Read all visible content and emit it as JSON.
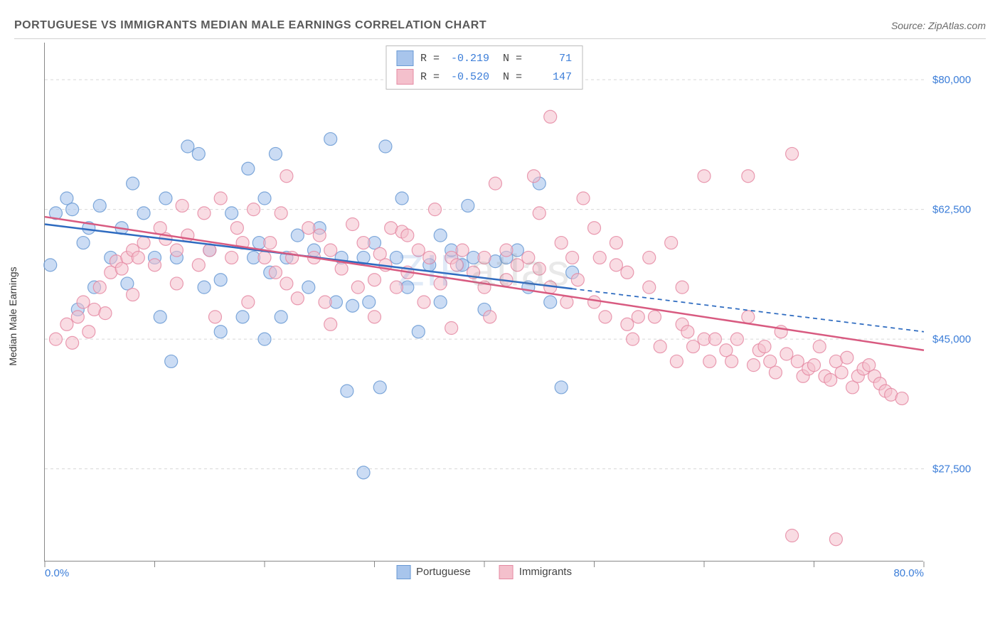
{
  "header": {
    "title": "PORTUGUESE VS IMMIGRANTS MEDIAN MALE EARNINGS CORRELATION CHART",
    "source": "Source: ZipAtlas.com"
  },
  "chart": {
    "type": "scatter",
    "ylabel": "Median Male Earnings",
    "xlim": [
      0,
      80
    ],
    "ylim": [
      15000,
      85000
    ],
    "x_axis": {
      "min_label": "0.0%",
      "max_label": "80.0%",
      "tick_positions_pct": [
        0,
        12.5,
        25,
        37.5,
        50,
        62.5,
        75,
        87.5,
        100
      ]
    },
    "y_axis": {
      "gridlines": [
        {
          "value": 27500,
          "label": "$27,500"
        },
        {
          "value": 45000,
          "label": "$45,000"
        },
        {
          "value": 62500,
          "label": "$62,500"
        },
        {
          "value": 80000,
          "label": "$80,000"
        }
      ],
      "grid_color": "#d8d8d8",
      "grid_dash": "4,4",
      "label_color": "#3b7dd8",
      "label_fontsize": 15
    },
    "background_color": "#ffffff",
    "watermark": {
      "text_a": "ZIP",
      "text_b": "atlas"
    },
    "series": [
      {
        "name": "Portuguese",
        "color_fill": "#a8c5ec",
        "color_stroke": "#6a9ad4",
        "marker_radius": 9,
        "marker_opacity": 0.6,
        "trend": {
          "x1": 0,
          "y1": 60500,
          "x2": 48,
          "y2": 51800,
          "x2_dashed": 80,
          "y2_dashed": 46000,
          "line_color": "#2e6bc0",
          "line_width": 2.5
        },
        "r": "-0.219",
        "n": "71",
        "points": [
          [
            1,
            62000
          ],
          [
            0.5,
            55000
          ],
          [
            2,
            64000
          ],
          [
            2.5,
            62500
          ],
          [
            3,
            49000
          ],
          [
            3.5,
            58000
          ],
          [
            4,
            60000
          ],
          [
            4.5,
            52000
          ],
          [
            5,
            63000
          ],
          [
            6,
            56000
          ],
          [
            7,
            60000
          ],
          [
            7.5,
            52500
          ],
          [
            8,
            66000
          ],
          [
            9,
            62000
          ],
          [
            10,
            56000
          ],
          [
            10.5,
            48000
          ],
          [
            11,
            64000
          ],
          [
            11.5,
            42000
          ],
          [
            12,
            56000
          ],
          [
            13,
            71000
          ],
          [
            14,
            70000
          ],
          [
            14.5,
            52000
          ],
          [
            15,
            57000
          ],
          [
            16,
            53000
          ],
          [
            16,
            46000
          ],
          [
            17,
            62000
          ],
          [
            18,
            48000
          ],
          [
            18.5,
            68000
          ],
          [
            19,
            56000
          ],
          [
            19.5,
            58000
          ],
          [
            20,
            64000
          ],
          [
            20.5,
            54000
          ],
          [
            21,
            70000
          ],
          [
            21.5,
            48000
          ],
          [
            22,
            56000
          ],
          [
            23,
            59000
          ],
          [
            24,
            52000
          ],
          [
            24.5,
            57000
          ],
          [
            26,
            72000
          ],
          [
            26.5,
            50000
          ],
          [
            27,
            56000
          ],
          [
            27.5,
            38000
          ],
          [
            28,
            49500
          ],
          [
            29,
            56000
          ],
          [
            29.5,
            50000
          ],
          [
            29,
            27000
          ],
          [
            30,
            58000
          ],
          [
            30.5,
            38500
          ],
          [
            31,
            71000
          ],
          [
            32,
            56000
          ],
          [
            32.5,
            64000
          ],
          [
            34,
            46000
          ],
          [
            35,
            55000
          ],
          [
            36,
            50000
          ],
          [
            37,
            57000
          ],
          [
            38,
            55000
          ],
          [
            38.5,
            63000
          ],
          [
            39,
            56000
          ],
          [
            40,
            49000
          ],
          [
            41,
            55500
          ],
          [
            42,
            56000
          ],
          [
            43,
            57000
          ],
          [
            44,
            52000
          ],
          [
            45,
            66000
          ],
          [
            46,
            50000
          ],
          [
            47,
            38500
          ],
          [
            48,
            54000
          ],
          [
            20,
            45000
          ],
          [
            25,
            60000
          ],
          [
            33,
            52000
          ],
          [
            36,
            59000
          ]
        ]
      },
      {
        "name": "Immigrants",
        "color_fill": "#f4c0cc",
        "color_stroke": "#e58aa3",
        "marker_radius": 9,
        "marker_opacity": 0.55,
        "trend": {
          "x1": 0,
          "y1": 61500,
          "x2": 80,
          "y2": 43500,
          "line_color": "#d85a80",
          "line_width": 2.5
        },
        "r": "-0.520",
        "n": "147",
        "points": [
          [
            1,
            45000
          ],
          [
            2,
            47000
          ],
          [
            2.5,
            44500
          ],
          [
            3,
            48000
          ],
          [
            3.5,
            50000
          ],
          [
            4,
            46000
          ],
          [
            4.5,
            49000
          ],
          [
            5,
            52000
          ],
          [
            5.5,
            48500
          ],
          [
            6,
            54000
          ],
          [
            6.5,
            55500
          ],
          [
            7,
            54500
          ],
          [
            7.5,
            56000
          ],
          [
            8,
            57000
          ],
          [
            8.5,
            56000
          ],
          [
            9,
            58000
          ],
          [
            10,
            55000
          ],
          [
            11,
            58500
          ],
          [
            12,
            57000
          ],
          [
            12.5,
            63000
          ],
          [
            13,
            59000
          ],
          [
            14,
            55000
          ],
          [
            14.5,
            62000
          ],
          [
            15,
            57000
          ],
          [
            15.5,
            48000
          ],
          [
            16,
            64000
          ],
          [
            17,
            56000
          ],
          [
            17.5,
            60000
          ],
          [
            18,
            58000
          ],
          [
            18.5,
            50000
          ],
          [
            19,
            62500
          ],
          [
            20,
            56000
          ],
          [
            20.5,
            58000
          ],
          [
            21,
            54000
          ],
          [
            21.5,
            62000
          ],
          [
            22,
            67000
          ],
          [
            22.5,
            56000
          ],
          [
            23,
            50500
          ],
          [
            24,
            60000
          ],
          [
            24.5,
            56000
          ],
          [
            25,
            59000
          ],
          [
            25.5,
            50000
          ],
          [
            26,
            57000
          ],
          [
            27,
            54500
          ],
          [
            28,
            60500
          ],
          [
            28.5,
            52000
          ],
          [
            29,
            58000
          ],
          [
            30,
            48000
          ],
          [
            30.5,
            56500
          ],
          [
            31,
            55000
          ],
          [
            31.5,
            60000
          ],
          [
            32,
            52000
          ],
          [
            32.5,
            59500
          ],
          [
            33,
            54000
          ],
          [
            33,
            59000
          ],
          [
            34,
            57000
          ],
          [
            34.5,
            50000
          ],
          [
            35,
            56000
          ],
          [
            35.5,
            62500
          ],
          [
            36,
            52500
          ],
          [
            37,
            56000
          ],
          [
            37.5,
            55000
          ],
          [
            38,
            57000
          ],
          [
            39,
            54000
          ],
          [
            40,
            56000
          ],
          [
            40.5,
            48000
          ],
          [
            41,
            66000
          ],
          [
            42,
            53000
          ],
          [
            42,
            57000
          ],
          [
            43,
            55000
          ],
          [
            44,
            56000
          ],
          [
            44.5,
            67000
          ],
          [
            45,
            54500
          ],
          [
            46,
            52000
          ],
          [
            46,
            75000
          ],
          [
            47,
            58000
          ],
          [
            47.5,
            50000
          ],
          [
            48,
            56000
          ],
          [
            48.5,
            53000
          ],
          [
            49,
            64000
          ],
          [
            50,
            50000
          ],
          [
            50.5,
            56000
          ],
          [
            51,
            48000
          ],
          [
            52,
            55000
          ],
          [
            53,
            54000
          ],
          [
            53.5,
            45000
          ],
          [
            54,
            48000
          ],
          [
            55,
            52000
          ],
          [
            55.5,
            48000
          ],
          [
            56,
            44000
          ],
          [
            57,
            58000
          ],
          [
            57.5,
            42000
          ],
          [
            58,
            47000
          ],
          [
            58.5,
            46000
          ],
          [
            59,
            44000
          ],
          [
            60,
            45000
          ],
          [
            60,
            67000
          ],
          [
            60.5,
            42000
          ],
          [
            61,
            45000
          ],
          [
            62,
            43500
          ],
          [
            62.5,
            42000
          ],
          [
            63,
            45000
          ],
          [
            64,
            48000
          ],
          [
            64,
            67000
          ],
          [
            64.5,
            41500
          ],
          [
            65,
            43500
          ],
          [
            65.5,
            44000
          ],
          [
            66,
            42000
          ],
          [
            66.5,
            40500
          ],
          [
            67,
            46000
          ],
          [
            67.5,
            43000
          ],
          [
            68,
            70000
          ],
          [
            68.5,
            42000
          ],
          [
            69,
            40000
          ],
          [
            69.5,
            41000
          ],
          [
            70,
            41500
          ],
          [
            70.5,
            44000
          ],
          [
            71,
            40000
          ],
          [
            71.5,
            39500
          ],
          [
            72,
            42000
          ],
          [
            72.5,
            40500
          ],
          [
            73,
            42500
          ],
          [
            73.5,
            38500
          ],
          [
            74,
            40000
          ],
          [
            74.5,
            41000
          ],
          [
            75,
            41500
          ],
          [
            75.5,
            40000
          ],
          [
            76,
            39000
          ],
          [
            76.5,
            38000
          ],
          [
            77,
            37500
          ],
          [
            78,
            37000
          ],
          [
            68,
            18500
          ],
          [
            72,
            18000
          ],
          [
            45,
            62000
          ],
          [
            50,
            60000
          ],
          [
            52,
            58000
          ],
          [
            55,
            56000
          ],
          [
            58,
            52000
          ],
          [
            53,
            47000
          ],
          [
            37,
            46500
          ],
          [
            26,
            47000
          ],
          [
            22,
            52500
          ],
          [
            30,
            53000
          ],
          [
            40,
            52000
          ],
          [
            12,
            52500
          ],
          [
            8,
            51000
          ],
          [
            10.5,
            60000
          ]
        ]
      }
    ],
    "legend_bottom": {
      "items": [
        {
          "label": "Portuguese",
          "fill": "#a8c5ec",
          "stroke": "#6a9ad4"
        },
        {
          "label": "Immigrants",
          "fill": "#f4c0cc",
          "stroke": "#e58aa3"
        }
      ]
    }
  }
}
